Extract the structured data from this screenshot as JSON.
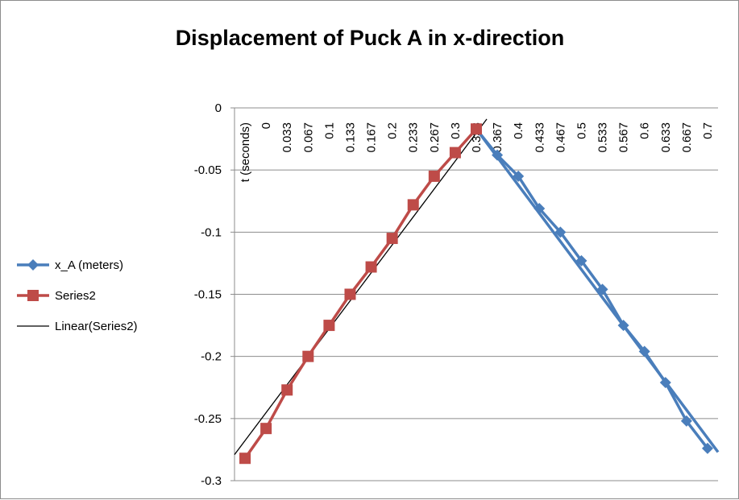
{
  "chart_data": {
    "type": "line",
    "title": "Displacement of Puck A in x-direction",
    "ylim": [
      -0.3,
      0
    ],
    "yticks": [
      "0",
      "-0.05",
      "-0.1",
      "-0.15",
      "-0.2",
      "-0.25",
      "-0.3"
    ],
    "ytick_values": [
      0,
      -0.05,
      -0.1,
      -0.15,
      -0.2,
      -0.25,
      -0.3
    ],
    "categories": [
      "t (seconds)",
      "0",
      "0.033",
      "0.067",
      "0.1",
      "0.133",
      "0.167",
      "0.2",
      "0.233",
      "0.267",
      "0.3",
      "0.333",
      "0.367",
      "0.4",
      "0.433",
      "0.467",
      "0.5",
      "0.533",
      "0.567",
      "0.6",
      "0.633",
      "0.667",
      "0.7"
    ],
    "grid": true,
    "legend_position": "left",
    "series": [
      {
        "name": "x_A (meters)",
        "color": "#4a7ebb",
        "marker": "diamond",
        "values": [
          null,
          null,
          null,
          null,
          null,
          null,
          null,
          null,
          null,
          null,
          null,
          -0.017,
          -0.038,
          -0.055,
          -0.081,
          -0.1,
          -0.123,
          -0.146,
          -0.175,
          -0.196,
          -0.221,
          -0.252,
          -0.274
        ]
      },
      {
        "name": "Series2",
        "color": "#be4b48",
        "marker": "square",
        "values": [
          -0.282,
          -0.258,
          -0.227,
          -0.2,
          -0.175,
          -0.15,
          -0.128,
          -0.105,
          -0.078,
          -0.055,
          -0.036,
          -0.017,
          null,
          null,
          null,
          null,
          null,
          null,
          null,
          null,
          null,
          null,
          null
        ]
      }
    ],
    "trendlines": [
      {
        "name": "Linear(Series2)",
        "of": "Series2",
        "color": "#000000",
        "start": [
          -0.5,
          -0.279
        ],
        "end": [
          11.5,
          -0.009
        ]
      },
      {
        "name": "",
        "of": "x_A (meters)",
        "color": "#4a7ebb",
        "start": [
          11,
          -0.017
        ],
        "end": [
          22.5,
          -0.277
        ]
      }
    ]
  }
}
